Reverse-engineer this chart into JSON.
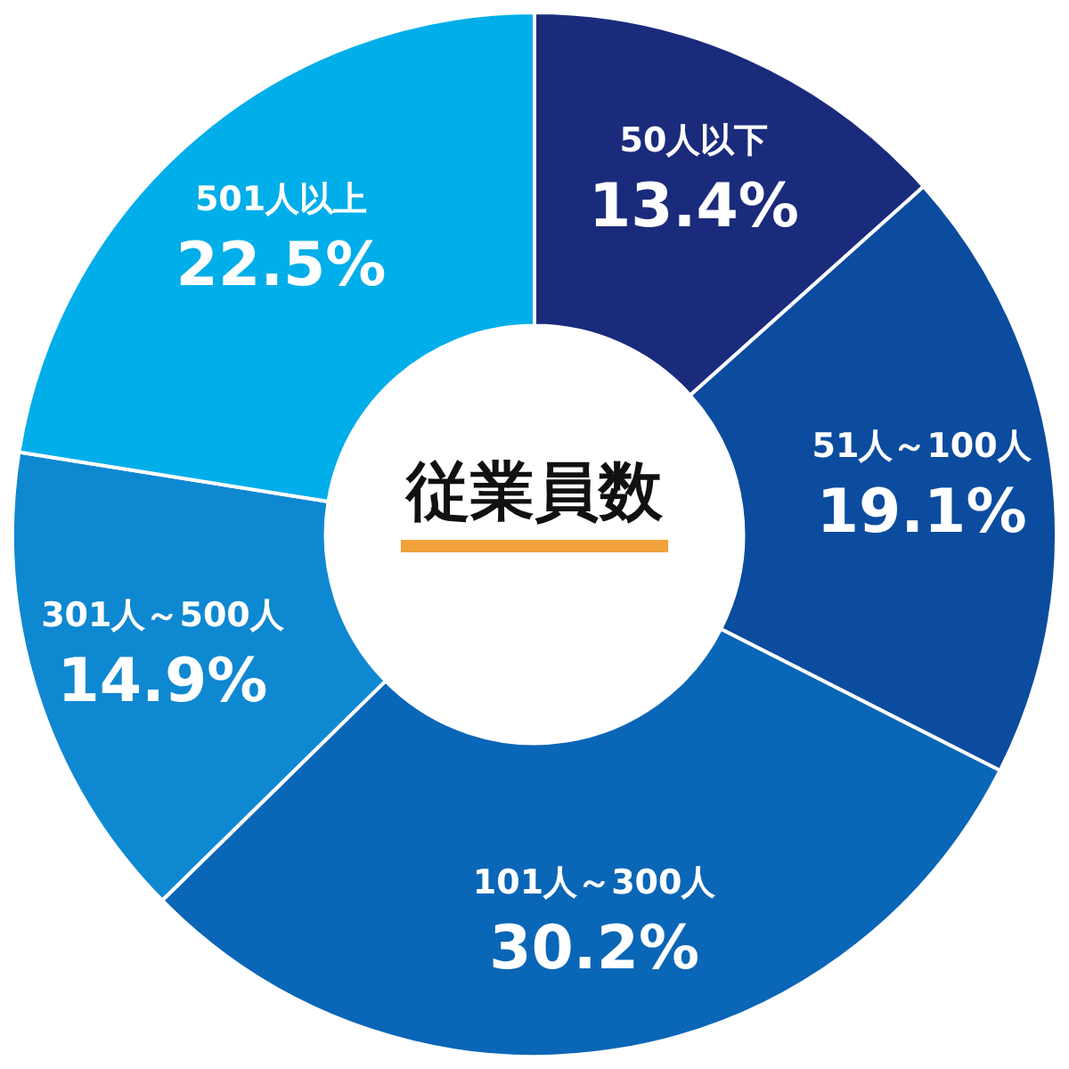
{
  "chart_data": {
    "type": "donut",
    "title": "従業員数",
    "categories": [
      "50人以下",
      "51人～100人",
      "101人～300人",
      "301人～500人",
      "501人以上"
    ],
    "values": [
      13.4,
      19.1,
      30.2,
      14.9,
      22.5
    ],
    "value_labels": [
      "13.4%",
      "19.1%",
      "30.2%",
      "14.9%",
      "22.5%"
    ],
    "colors": [
      "#1b2b7c",
      "#0b4c9f",
      "#0a66b7",
      "#0f88d2",
      "#00aee9"
    ],
    "legend": false
  }
}
